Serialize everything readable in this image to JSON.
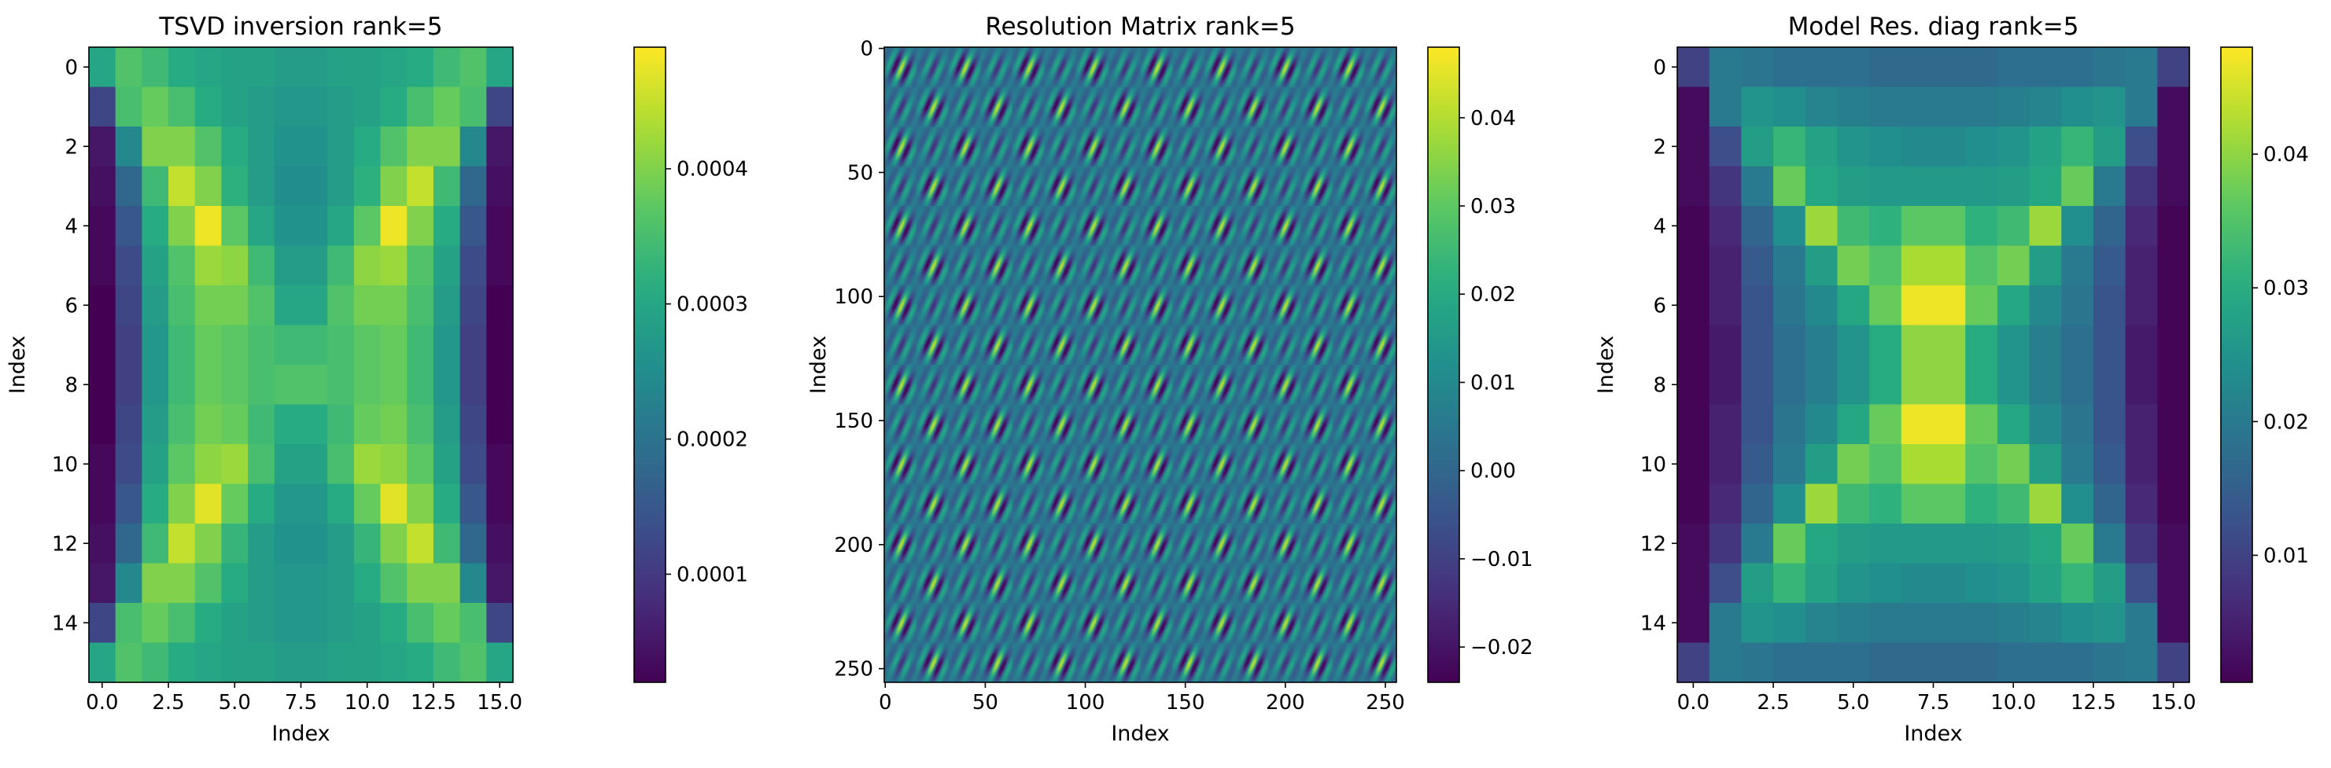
{
  "chart_data": [
    {
      "type": "heatmap",
      "title": "TSVD inversion rank=5",
      "xlabel": "Index",
      "ylabel": "Index",
      "xlim": [
        -0.5,
        15.5
      ],
      "ylim": [
        15.5,
        -0.5
      ],
      "x_ticks": [
        "0.0",
        "2.5",
        "5.0",
        "7.5",
        "10.0",
        "12.5",
        "15.0"
      ],
      "x_tick_values": [
        0,
        2.5,
        5,
        7.5,
        10,
        12.5,
        15
      ],
      "y_ticks": [
        "0",
        "2",
        "4",
        "6",
        "8",
        "10",
        "12",
        "14"
      ],
      "y_tick_values": [
        0,
        2,
        4,
        6,
        8,
        10,
        12,
        14
      ],
      "colormap": "viridis",
      "colorbar": {
        "min": 2e-05,
        "max": 0.00049,
        "ticks": [
          "0.0001",
          "0.0002",
          "0.0003",
          "0.0004"
        ],
        "tick_values": [
          0.0001,
          0.0002,
          0.0003,
          0.0004
        ]
      },
      "values": [
        [
          0.0003,
          0.00036,
          0.00034,
          0.00031,
          0.0003,
          0.00029,
          0.00029,
          0.00028,
          0.00028,
          0.00029,
          0.00029,
          0.0003,
          0.00031,
          0.00034,
          0.00036,
          0.0003
        ],
        [
          0.00012,
          0.00035,
          0.00038,
          0.00035,
          0.00031,
          0.00029,
          0.00028,
          0.00027,
          0.00027,
          0.00028,
          0.00029,
          0.00031,
          0.00035,
          0.00038,
          0.00035,
          0.00012
        ],
        [
          5e-05,
          0.00024,
          0.0004,
          0.0004,
          0.00036,
          0.00031,
          0.00028,
          0.00026,
          0.00026,
          0.00028,
          0.00031,
          0.00036,
          0.0004,
          0.0004,
          0.00024,
          5e-05
        ],
        [
          4e-05,
          0.00018,
          0.00034,
          0.00045,
          0.0004,
          0.00032,
          0.00028,
          0.00025,
          0.00025,
          0.00028,
          0.00032,
          0.0004,
          0.00045,
          0.00034,
          0.00018,
          4e-05
        ],
        [
          3e-05,
          0.00015,
          0.00031,
          0.0004,
          0.00048,
          0.00037,
          0.0003,
          0.00026,
          0.00026,
          0.0003,
          0.00037,
          0.00048,
          0.0004,
          0.00031,
          0.00015,
          3e-05
        ],
        [
          3e-05,
          0.00013,
          0.00029,
          0.00036,
          0.00042,
          0.00041,
          0.00034,
          0.00028,
          0.00028,
          0.00034,
          0.00041,
          0.00042,
          0.00036,
          0.00029,
          0.00013,
          3e-05
        ],
        [
          2e-05,
          0.00012,
          0.00028,
          0.00035,
          0.00039,
          0.00039,
          0.00036,
          0.0003,
          0.0003,
          0.00036,
          0.00039,
          0.00039,
          0.00035,
          0.00028,
          0.00012,
          2e-05
        ],
        [
          2e-05,
          0.00011,
          0.00027,
          0.00034,
          0.00038,
          0.00037,
          0.00035,
          0.00034,
          0.00034,
          0.00035,
          0.00037,
          0.00038,
          0.00034,
          0.00027,
          0.00011,
          2e-05
        ],
        [
          2e-05,
          0.00011,
          0.00027,
          0.00034,
          0.00038,
          0.00037,
          0.00035,
          0.00036,
          0.00036,
          0.00035,
          0.00037,
          0.00038,
          0.00034,
          0.00027,
          0.00011,
          2e-05
        ],
        [
          2e-05,
          0.00012,
          0.00028,
          0.00035,
          0.00039,
          0.00038,
          0.00034,
          0.00031,
          0.00031,
          0.00034,
          0.00038,
          0.00039,
          0.00035,
          0.00028,
          0.00012,
          2e-05
        ],
        [
          3e-05,
          0.00013,
          0.00029,
          0.00037,
          0.00041,
          0.00042,
          0.00035,
          0.00029,
          0.00029,
          0.00035,
          0.00042,
          0.00041,
          0.00037,
          0.00029,
          0.00013,
          3e-05
        ],
        [
          3e-05,
          0.00015,
          0.00031,
          0.0004,
          0.00047,
          0.00038,
          0.00031,
          0.00027,
          0.00027,
          0.00031,
          0.00038,
          0.00047,
          0.0004,
          0.00031,
          0.00015,
          3e-05
        ],
        [
          4e-05,
          0.00018,
          0.00034,
          0.00045,
          0.0004,
          0.00033,
          0.00028,
          0.00026,
          0.00026,
          0.00028,
          0.00033,
          0.0004,
          0.00045,
          0.00034,
          0.00018,
          4e-05
        ],
        [
          5e-05,
          0.00024,
          0.0004,
          0.0004,
          0.00036,
          0.00031,
          0.00028,
          0.00027,
          0.00027,
          0.00028,
          0.00031,
          0.00036,
          0.0004,
          0.0004,
          0.00024,
          5e-05
        ],
        [
          0.00012,
          0.00035,
          0.00038,
          0.00035,
          0.00031,
          0.00029,
          0.00028,
          0.00027,
          0.00027,
          0.00028,
          0.00029,
          0.00031,
          0.00035,
          0.00038,
          0.00035,
          0.00012
        ],
        [
          0.0003,
          0.00036,
          0.00034,
          0.00031,
          0.0003,
          0.00029,
          0.00029,
          0.00028,
          0.00028,
          0.00029,
          0.00029,
          0.0003,
          0.00031,
          0.00034,
          0.00036,
          0.0003
        ]
      ]
    },
    {
      "type": "heatmap",
      "title": "Resolution Matrix rank=5",
      "xlabel": "Index",
      "ylabel": "Index",
      "xlim": [
        -0.5,
        255.5
      ],
      "ylim": [
        255.5,
        -0.5
      ],
      "x_ticks": [
        "0",
        "50",
        "100",
        "150",
        "200",
        "250"
      ],
      "x_tick_values": [
        0,
        50,
        100,
        150,
        200,
        250
      ],
      "y_ticks": [
        "0",
        "50",
        "100",
        "150",
        "200",
        "250"
      ],
      "y_tick_values": [
        0,
        50,
        100,
        150,
        200,
        250
      ],
      "colormap": "viridis",
      "colorbar": {
        "min": -0.024,
        "max": 0.048,
        "ticks": [
          "−0.02",
          "−0.01",
          "0.00",
          "0.01",
          "0.02",
          "0.03",
          "0.04"
        ],
        "tick_values": [
          -0.02,
          -0.01,
          0,
          0.01,
          0.02,
          0.03,
          0.04
        ]
      },
      "pattern": "Banded oscillatory 256x256 matrix: diagonal streaks reaching 0.048 within 16x16 sub-blocks, blocks alternating in sign along the main diagonal, values between -0.024 and 0.048"
    },
    {
      "type": "heatmap",
      "title": "Model Res. diag rank=5",
      "xlabel": "Index",
      "ylabel": "Index",
      "xlim": [
        -0.5,
        15.5
      ],
      "ylim": [
        15.5,
        -0.5
      ],
      "x_ticks": [
        "0.0",
        "2.5",
        "5.0",
        "7.5",
        "10.0",
        "12.5",
        "15.0"
      ],
      "x_tick_values": [
        0,
        2.5,
        5,
        7.5,
        10,
        12.5,
        15
      ],
      "y_ticks": [
        "0",
        "2",
        "4",
        "6",
        "8",
        "10",
        "12",
        "14"
      ],
      "y_tick_values": [
        0,
        2,
        4,
        6,
        8,
        10,
        12,
        14
      ],
      "colormap": "viridis",
      "colorbar": {
        "min": 0.0005,
        "max": 0.048,
        "ticks": [
          "0.01",
          "0.02",
          "0.03",
          "0.04"
        ],
        "tick_values": [
          0.01,
          0.02,
          0.03,
          0.04
        ]
      },
      "values": [
        [
          0.01,
          0.02,
          0.019,
          0.018,
          0.018,
          0.018,
          0.017,
          0.017,
          0.017,
          0.017,
          0.018,
          0.018,
          0.018,
          0.019,
          0.02,
          0.01
        ],
        [
          0.002,
          0.02,
          0.025,
          0.024,
          0.022,
          0.021,
          0.02,
          0.02,
          0.02,
          0.02,
          0.021,
          0.022,
          0.024,
          0.025,
          0.02,
          0.002
        ],
        [
          0.002,
          0.012,
          0.027,
          0.032,
          0.028,
          0.025,
          0.024,
          0.023,
          0.023,
          0.024,
          0.025,
          0.028,
          0.032,
          0.027,
          0.012,
          0.002
        ],
        [
          0.002,
          0.008,
          0.02,
          0.037,
          0.029,
          0.027,
          0.026,
          0.026,
          0.026,
          0.026,
          0.027,
          0.029,
          0.037,
          0.02,
          0.008,
          0.002
        ],
        [
          0.001,
          0.006,
          0.016,
          0.024,
          0.041,
          0.033,
          0.031,
          0.036,
          0.036,
          0.031,
          0.033,
          0.041,
          0.024,
          0.016,
          0.006,
          0.001
        ],
        [
          0.001,
          0.005,
          0.014,
          0.02,
          0.027,
          0.038,
          0.035,
          0.042,
          0.042,
          0.035,
          0.038,
          0.027,
          0.02,
          0.014,
          0.005,
          0.001
        ],
        [
          0.001,
          0.005,
          0.013,
          0.019,
          0.023,
          0.029,
          0.037,
          0.047,
          0.047,
          0.037,
          0.029,
          0.023,
          0.019,
          0.013,
          0.005,
          0.001
        ],
        [
          0.001,
          0.004,
          0.013,
          0.018,
          0.021,
          0.025,
          0.03,
          0.04,
          0.04,
          0.03,
          0.025,
          0.021,
          0.018,
          0.013,
          0.004,
          0.001
        ],
        [
          0.001,
          0.004,
          0.013,
          0.018,
          0.021,
          0.025,
          0.03,
          0.04,
          0.04,
          0.03,
          0.025,
          0.021,
          0.018,
          0.013,
          0.004,
          0.001
        ],
        [
          0.001,
          0.005,
          0.013,
          0.019,
          0.023,
          0.029,
          0.037,
          0.047,
          0.047,
          0.037,
          0.029,
          0.023,
          0.019,
          0.013,
          0.005,
          0.001
        ],
        [
          0.001,
          0.005,
          0.014,
          0.02,
          0.027,
          0.038,
          0.035,
          0.042,
          0.042,
          0.035,
          0.038,
          0.027,
          0.02,
          0.014,
          0.005,
          0.001
        ],
        [
          0.001,
          0.006,
          0.016,
          0.024,
          0.041,
          0.033,
          0.031,
          0.036,
          0.036,
          0.031,
          0.033,
          0.041,
          0.024,
          0.016,
          0.006,
          0.001
        ],
        [
          0.002,
          0.008,
          0.02,
          0.037,
          0.029,
          0.027,
          0.026,
          0.026,
          0.026,
          0.026,
          0.027,
          0.029,
          0.037,
          0.02,
          0.008,
          0.002
        ],
        [
          0.002,
          0.012,
          0.027,
          0.032,
          0.028,
          0.025,
          0.024,
          0.023,
          0.023,
          0.024,
          0.025,
          0.028,
          0.032,
          0.027,
          0.012,
          0.002
        ],
        [
          0.002,
          0.02,
          0.025,
          0.024,
          0.022,
          0.021,
          0.02,
          0.02,
          0.02,
          0.02,
          0.021,
          0.022,
          0.024,
          0.025,
          0.02,
          0.002
        ],
        [
          0.01,
          0.02,
          0.019,
          0.018,
          0.018,
          0.018,
          0.017,
          0.017,
          0.017,
          0.017,
          0.018,
          0.018,
          0.018,
          0.019,
          0.02,
          0.01
        ]
      ]
    }
  ]
}
